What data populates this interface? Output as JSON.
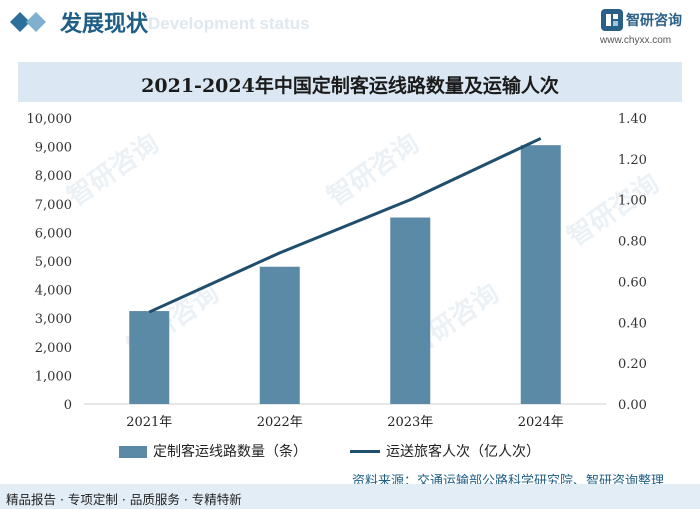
{
  "header": {
    "title": "发展现状",
    "subtitle": "Development status"
  },
  "brand": {
    "name": "智研咨询",
    "url": "www.chyxx.com"
  },
  "watermark": "智研咨询",
  "chart_data": {
    "type": "bar+line",
    "title": "2021-2024年中国定制客运线路数量及运输人次",
    "categories": [
      "2021年",
      "2022年",
      "2023年",
      "2024年"
    ],
    "series": [
      {
        "name": "定制客运线路数量（条）",
        "type": "bar",
        "axis": "left",
        "values": [
          3250,
          4800,
          6520,
          9050
        ],
        "color": "#5b8aa6"
      },
      {
        "name": "运送旅客人次（亿人次）",
        "type": "line",
        "axis": "right",
        "values": [
          0.45,
          0.74,
          1.0,
          1.3
        ],
        "color": "#1f4e6e"
      }
    ],
    "y_left": {
      "min": 0,
      "max": 10000,
      "ticks": [
        "0",
        "1,000",
        "2,000",
        "3,000",
        "4,000",
        "5,000",
        "6,000",
        "7,000",
        "8,000",
        "9,000",
        "10,000"
      ]
    },
    "y_right": {
      "min": 0,
      "max": 1.4,
      "ticks": [
        "0.00",
        "0.20",
        "0.40",
        "0.60",
        "0.80",
        "1.00",
        "1.20",
        "1.40"
      ]
    },
    "legend_position": "bottom"
  },
  "source": "资料来源：交通运输部公路科学研究院、智研咨询整理",
  "footer": "精品报告 · 专项定制 · 品质服务 · 专精特新"
}
